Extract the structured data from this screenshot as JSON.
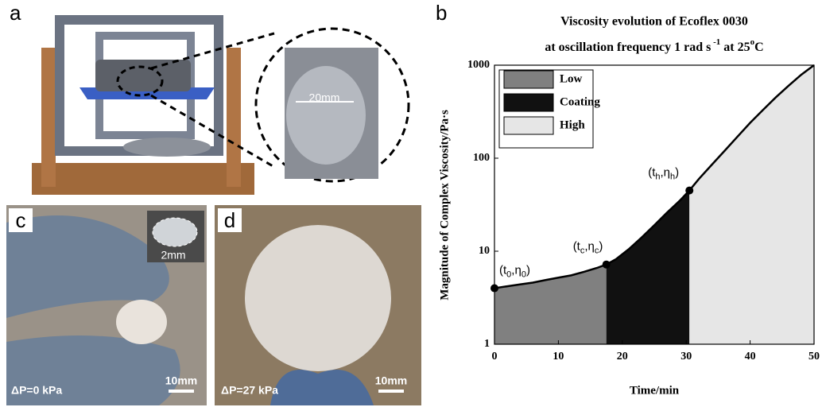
{
  "panels": {
    "a": {
      "label": "a",
      "dimension": "20mm"
    },
    "c": {
      "label": "c",
      "dimension": "2mm",
      "pressure": "ΔP=0 kPa",
      "scale": "10mm"
    },
    "d": {
      "label": "d",
      "pressure": "ΔP=27 kPa",
      "scale": "10mm"
    },
    "b": {
      "label": "b"
    }
  },
  "chart_data": {
    "type": "line",
    "title": "Viscosity evolution of Ecoflex 0030",
    "title_line2": [
      "at oscillation frequency 1 rad s",
      " -1",
      " at 25",
      "o",
      "C"
    ],
    "x_label": "Time/min",
    "y_label": "Magnitude of Complex Viscosity/Pa·s",
    "x": [
      0,
      2,
      4,
      6,
      8,
      10,
      12,
      14,
      16,
      17.5,
      19,
      21,
      23,
      25,
      27,
      29,
      30.5,
      32,
      34,
      36,
      38,
      40,
      42,
      44,
      46,
      48,
      50
    ],
    "series": [
      {
        "color": "#000000",
        "values": [
          4,
          4.2,
          4.4,
          4.6,
          4.9,
          5.2,
          5.5,
          6.0,
          6.6,
          7.2,
          8.2,
          10.5,
          14,
          19,
          26,
          35,
          45,
          60,
          85,
          120,
          170,
          240,
          330,
          450,
          600,
          790,
          1000
        ]
      }
    ],
    "regions": [
      {
        "name": "Low",
        "color": "#808080",
        "range": [
          0,
          17.5
        ]
      },
      {
        "name": "Coating",
        "color": "#111111",
        "range": [
          17.5,
          30.5
        ]
      },
      {
        "name": "High",
        "color": "#e6e6e6",
        "range": [
          30.5,
          50
        ]
      }
    ],
    "points": [
      {
        "label": [
          "(t",
          "0",
          ",η",
          "0",
          ")"
        ],
        "x": 0,
        "y": 4
      },
      {
        "label": [
          "(t",
          "c",
          ",η",
          "c",
          ")"
        ],
        "x": 17.5,
        "y": 7.2
      },
      {
        "label": [
          "(t",
          "h",
          ",η",
          "h",
          ")"
        ],
        "x": 30.5,
        "y": 45
      }
    ],
    "xlim": [
      0,
      50
    ],
    "xticks": [
      0,
      10,
      20,
      30,
      40,
      50
    ],
    "ylim": [
      1,
      1000
    ],
    "yticks": [
      1,
      10,
      100,
      1000
    ],
    "log_y": true
  }
}
